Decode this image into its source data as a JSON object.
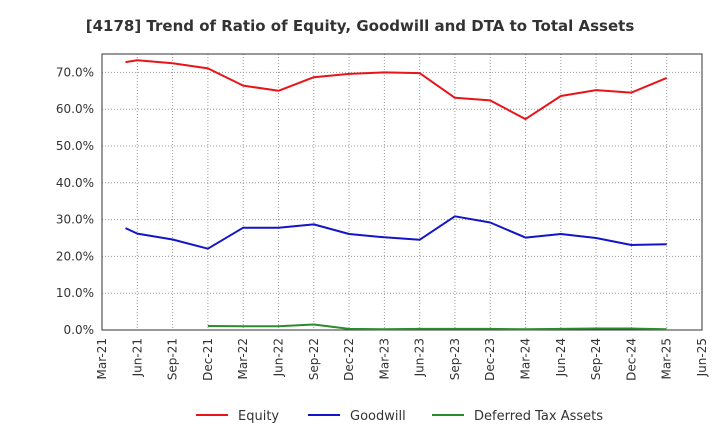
{
  "chart_data": {
    "type": "line",
    "title": "[4178]  Trend of Ratio of Equity, Goodwill and DTA to Total Assets",
    "x_ticks": [
      "Mar-21",
      "Jun-21",
      "Sep-21",
      "Dec-21",
      "Mar-22",
      "Jun-22",
      "Sep-22",
      "Dec-22",
      "Mar-23",
      "Jun-23",
      "Sep-23",
      "Dec-23",
      "Mar-24",
      "Jun-24",
      "Sep-24",
      "Dec-24",
      "Mar-25",
      "Jun-25"
    ],
    "y_ticks": [
      "0.0%",
      "10.0%",
      "20.0%",
      "30.0%",
      "40.0%",
      "50.0%",
      "60.0%",
      "70.0%"
    ],
    "ylim": [
      0,
      75
    ],
    "grid": true,
    "legend_position": "bottom",
    "series": [
      {
        "name": "Equity",
        "color": "#e8141a",
        "x": [
          "2021-05",
          "2021-06",
          "2021-09",
          "2021-12",
          "2022-03",
          "2022-06",
          "2022-09",
          "2022-12",
          "2023-03",
          "2023-06",
          "2023-09",
          "2023-12",
          "2024-03",
          "2024-06",
          "2024-09",
          "2024-12",
          "2025-03"
        ],
        "values": [
          72.8,
          73.3,
          72.5,
          71.1,
          66.4,
          65.0,
          68.7,
          69.6,
          70.0,
          69.8,
          63.1,
          62.4,
          57.3,
          63.6,
          65.2,
          64.5,
          68.5
        ]
      },
      {
        "name": "Goodwill",
        "color": "#1414c8",
        "x": [
          "2021-05",
          "2021-06",
          "2021-09",
          "2021-12",
          "2022-03",
          "2022-06",
          "2022-09",
          "2022-12",
          "2023-03",
          "2023-06",
          "2023-09",
          "2023-12",
          "2024-03",
          "2024-06",
          "2024-09",
          "2024-12",
          "2025-03"
        ],
        "values": [
          27.7,
          26.2,
          24.6,
          22.1,
          27.8,
          27.8,
          28.7,
          26.1,
          25.2,
          24.5,
          30.9,
          29.2,
          25.1,
          26.1,
          25.0,
          23.1,
          23.3
        ]
      },
      {
        "name": "Deferred Tax Assets",
        "color": "#2a8c2a",
        "x": [
          "2021-12",
          "2022-03",
          "2022-06",
          "2022-09",
          "2022-12",
          "2023-03",
          "2023-06",
          "2023-09",
          "2023-12",
          "2024-03",
          "2024-06",
          "2024-09",
          "2024-12",
          "2025-03"
        ],
        "values": [
          1.1,
          1.0,
          1.0,
          1.5,
          0.3,
          0.2,
          0.3,
          0.3,
          0.3,
          0.2,
          0.3,
          0.4,
          0.4,
          0.2
        ]
      }
    ]
  }
}
